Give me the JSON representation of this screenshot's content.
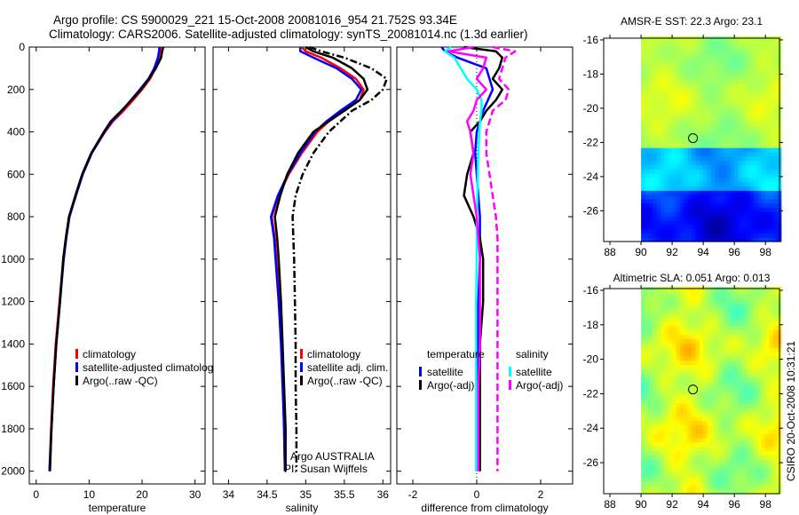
{
  "title": {
    "line1": "Argo profile: CS 5900029_221 15-Oct-2008 20081016_954 21.752S 93.34E",
    "line2": "Climatology: CARS2006. Satellite-adjusted climatology: synTS_20081014.nc (1.3d earlier)"
  },
  "credits": {
    "line1": "Argo AUSTRALIA",
    "line2": "PI: Susan Wijffels"
  },
  "timestamp": "CSIRO 20-Oct-2008 10:31:21",
  "colors": {
    "climatology": "#ff0000",
    "satellite": "#0000ff",
    "argo": "#000000",
    "sal_satellite": "#00ffff",
    "sal_argo": "#ff00ff"
  },
  "chart_data": [
    {
      "type": "line",
      "id": "temperature",
      "xlabel": "temperature",
      "ylabel": "",
      "xlim": [
        -1.3,
        31.9
      ],
      "ylim": [
        2060,
        0
      ],
      "xticks": [
        "0",
        "10",
        "20",
        "30"
      ],
      "xtick_values": [
        0,
        10,
        20,
        30
      ],
      "yticks": [
        "0",
        "200",
        "400",
        "600",
        "800",
        "1000",
        "1200",
        "1400",
        "1600",
        "1800",
        "2000"
      ],
      "ytick_values": [
        0,
        200,
        400,
        600,
        800,
        1000,
        1200,
        1400,
        1600,
        1800,
        2000
      ],
      "depth": [
        0,
        20,
        50,
        100,
        150,
        200,
        250,
        300,
        350,
        400,
        500,
        600,
        700,
        800,
        900,
        1000,
        1200,
        1400,
        1600,
        1800,
        2000
      ],
      "series": [
        {
          "name": "climatology",
          "color": "#ff0000",
          "dash": "",
          "values": [
            23.5,
            23.4,
            23.2,
            22.5,
            21.5,
            20.0,
            18.3,
            16.5,
            14.5,
            13.0,
            10.5,
            8.8,
            7.5,
            6.2,
            5.6,
            5.1,
            4.4,
            3.7,
            3.2,
            2.8,
            2.5
          ]
        },
        {
          "name": "satellite-adjusted climatology",
          "color": "#0000ff",
          "dash": "",
          "values": [
            23.3,
            23.2,
            23.0,
            22.3,
            21.2,
            19.6,
            17.9,
            16.2,
            14.3,
            12.9,
            10.5,
            8.8,
            7.5,
            6.3,
            5.7,
            5.2,
            4.5,
            3.8,
            3.3,
            2.9,
            2.5
          ]
        },
        {
          "name": "Argo(..raw -QC)",
          "color": "#000000",
          "dash": "",
          "values": [
            24.0,
            23.8,
            23.6,
            22.6,
            21.3,
            19.8,
            18.0,
            16.1,
            14.1,
            12.8,
            10.4,
            8.7,
            7.4,
            6.2,
            5.6,
            5.1,
            4.5,
            3.8,
            3.3,
            2.9,
            2.6
          ]
        }
      ],
      "legend": [
        "climatology",
        "satellite-adjusted climatology",
        "Argo(..raw -QC)"
      ]
    },
    {
      "type": "line",
      "id": "salinity",
      "xlabel": "salinity",
      "xlim": [
        33.8,
        36.1
      ],
      "ylim": [
        2060,
        0
      ],
      "xticks": [
        "34",
        "34.5",
        "35",
        "35.5",
        "36"
      ],
      "xtick_values": [
        34,
        34.5,
        35,
        35.5,
        36
      ],
      "depth": [
        0,
        20,
        50,
        100,
        150,
        200,
        250,
        300,
        350,
        400,
        500,
        600,
        700,
        800,
        900,
        1000,
        1200,
        1400,
        1600,
        1800,
        2000
      ],
      "series": [
        {
          "name": "climatology",
          "color": "#ff0000",
          "dash": "",
          "values": [
            34.95,
            35.0,
            35.2,
            35.45,
            35.65,
            35.75,
            35.7,
            35.5,
            35.3,
            35.15,
            34.95,
            34.78,
            34.65,
            34.56,
            34.6,
            34.62,
            34.66,
            34.69,
            34.71,
            34.72,
            34.73
          ]
        },
        {
          "name": "satellite adj. clim.",
          "color": "#0000ff",
          "dash": "",
          "values": [
            34.93,
            34.93,
            35.1,
            35.4,
            35.6,
            35.72,
            35.65,
            35.45,
            35.27,
            35.12,
            34.93,
            34.77,
            34.64,
            34.55,
            34.59,
            34.61,
            34.65,
            34.68,
            34.7,
            34.72,
            34.73
          ]
        },
        {
          "name": "Argo(..raw -QC)",
          "color": "#000000",
          "dash": "",
          "values": [
            35.0,
            35.1,
            35.35,
            35.6,
            35.75,
            35.8,
            35.7,
            35.5,
            35.3,
            35.1,
            34.9,
            34.76,
            34.67,
            34.6,
            34.63,
            34.65,
            34.68,
            34.7,
            34.72,
            34.74,
            34.74
          ]
        },
        {
          "name": "Argo raw",
          "color": "#000000",
          "dash": "8 3 2 3",
          "values": [
            35.05,
            35.2,
            35.5,
            35.85,
            36.05,
            36.0,
            35.85,
            35.6,
            35.45,
            35.3,
            35.1,
            34.96,
            34.87,
            34.83,
            34.84,
            34.85,
            34.86,
            34.87,
            34.87,
            34.88,
            34.88
          ]
        }
      ],
      "legend": [
        "climatology",
        "satellite adj. clim.",
        "Argo(..raw -QC)"
      ]
    },
    {
      "type": "line",
      "id": "difference",
      "xlabel": "difference from climatology",
      "xlim": [
        -2.5,
        3.0
      ],
      "ylim": [
        2060,
        0
      ],
      "xticks": [
        "-2",
        "0",
        "2"
      ],
      "xtick_values": [
        -2,
        0,
        2
      ],
      "depth": [
        0,
        20,
        50,
        100,
        150,
        200,
        250,
        300,
        350,
        400,
        500,
        600,
        700,
        800,
        900,
        1000,
        1200,
        1400,
        1600,
        1800,
        2000
      ],
      "series": [
        {
          "name": "temperature satellite",
          "color": "#0000ff",
          "dash": "",
          "values": [
            -1.1,
            -1.0,
            -0.6,
            0.3,
            0.4,
            0.5,
            0.35,
            0.2,
            0.1,
            0,
            -0.05,
            0,
            0.05,
            0.1,
            0.1,
            0.1,
            0.05,
            0.03,
            0,
            0,
            0
          ]
        },
        {
          "name": "temperature Argo(-adj)",
          "color": "#000000",
          "dash": "",
          "values": [
            -0.4,
            0.6,
            0.8,
            0.7,
            0.5,
            0.8,
            0.6,
            0.3,
            0.1,
            -0.2,
            -0.1,
            -0.3,
            -0.4,
            -0.1,
            0.1,
            0.2,
            0.2,
            0.1,
            0.1,
            0.1,
            0.1
          ]
        },
        {
          "name": "salinity satellite",
          "color": "#00ffff",
          "dash": "",
          "values": [
            -0.8,
            -1.0,
            -0.7,
            -0.5,
            -0.3,
            0,
            0.15,
            0.15,
            0.1,
            0.08,
            0.05,
            0.03,
            0.02,
            0,
            0,
            0,
            -0.02,
            -0.02,
            -0.02,
            -0.02,
            -0.02
          ]
        },
        {
          "name": "salinity Argo(-adj)",
          "color": "#ff00ff",
          "dash": "",
          "values": [
            -0.1,
            -0.9,
            0.3,
            0.2,
            0.0,
            0.3,
            0.0,
            -0.1,
            -0.3,
            -0.2,
            -0.1,
            -0.2,
            -0.1,
            0,
            0.05,
            0.1,
            0.1,
            0.1,
            0.05,
            0.05,
            0.05
          ]
        },
        {
          "name": "salinity Argo raw",
          "color": "#ff00ff",
          "dash": "8 4",
          "values": [
            0.5,
            1.2,
            0.9,
            0.8,
            0.7,
            1.0,
            0.9,
            0.5,
            0.4,
            0.3,
            0.3,
            0.4,
            0.5,
            0.6,
            0.65,
            0.65,
            0.65,
            0.65,
            0.65,
            0.65,
            0.65
          ]
        }
      ],
      "legend": {
        "temperature_header": "temperature",
        "salinity_header": "salinity",
        "satellite": "satellite",
        "argo": "Argo(-adj)"
      }
    },
    {
      "type": "heatmap",
      "id": "sst_map",
      "title": "AMSR-E SST: 22.3 Argo: 23.1",
      "xlim": [
        87.6,
        98.9
      ],
      "ylim": [
        -27.8,
        -15.9
      ],
      "xticks": [
        "88",
        "90",
        "92",
        "94",
        "96",
        "98"
      ],
      "xtick_values": [
        88,
        90,
        92,
        94,
        96,
        98
      ],
      "yticks": [
        "-16",
        "-18",
        "-20",
        "-22",
        "-24",
        "-26"
      ],
      "ytick_values": [
        -16,
        -18,
        -20,
        -22,
        -24,
        -26
      ],
      "data_extent_lon": [
        90,
        98.9
      ],
      "float_position": {
        "lon": 93.34,
        "lat": -21.752
      }
    },
    {
      "type": "heatmap",
      "id": "sla_map",
      "title": "Altimetric SLA: 0.051 Argo: 0.013",
      "xlim": [
        87.6,
        98.9
      ],
      "ylim": [
        -27.8,
        -15.9
      ],
      "xticks": [
        "88",
        "90",
        "92",
        "94",
        "96",
        "98"
      ],
      "xtick_values": [
        88,
        90,
        92,
        94,
        96,
        98
      ],
      "yticks": [
        "-16",
        "-18",
        "-20",
        "-22",
        "-24",
        "-26"
      ],
      "ytick_values": [
        -16,
        -18,
        -20,
        -22,
        -24,
        -26
      ],
      "data_extent_lon": [
        90,
        98.9
      ],
      "float_position": {
        "lon": 93.34,
        "lat": -21.752
      }
    }
  ]
}
